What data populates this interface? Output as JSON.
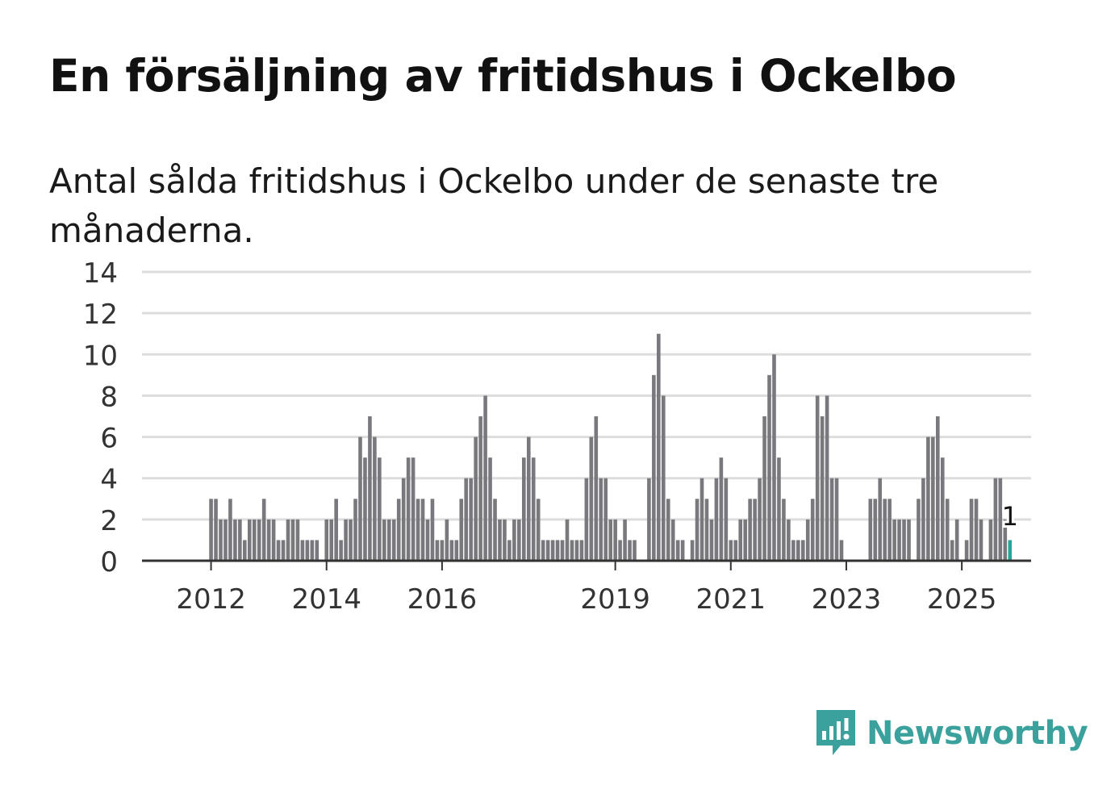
{
  "title": "En försäljning av fritidshus i Ockelbo",
  "subtitle": "Antal sålda fritidshus i Ockelbo under de senaste tre månaderna.",
  "brand": {
    "name": "Newsworthy",
    "icon": "newsworthy-logo-icon",
    "color": "#3aa19c"
  },
  "chart_data": {
    "type": "bar",
    "title": "",
    "xlabel": "",
    "ylabel": "",
    "ylim": [
      0,
      14
    ],
    "yticks": [
      "0",
      "2",
      "4",
      "6",
      "8",
      "10",
      "12",
      "14"
    ],
    "xticks": [
      {
        "label": "2012",
        "month": "2012-01"
      },
      {
        "label": "2014",
        "month": "2014-01"
      },
      {
        "label": "2016",
        "month": "2016-01"
      },
      {
        "label": "2019",
        "month": "2019-01"
      },
      {
        "label": "2021",
        "month": "2021-01"
      },
      {
        "label": "2023",
        "month": "2023-01"
      },
      {
        "label": "2025",
        "month": "2025-01"
      }
    ],
    "grid": true,
    "bar_color": "#79787d",
    "highlight_color": "#2aa39a",
    "series": [
      {
        "start_month": "2011-01",
        "values": [
          0,
          0,
          0,
          0,
          0,
          0,
          0,
          0,
          0,
          0,
          0,
          0,
          3,
          3,
          2,
          2,
          3,
          2,
          2,
          1,
          2,
          2,
          2,
          3,
          2,
          2,
          1,
          1,
          2,
          2,
          2,
          1,
          1,
          1,
          1,
          0,
          2,
          2,
          3,
          1,
          2,
          2,
          3,
          6,
          5,
          7,
          6,
          5,
          2,
          2,
          2,
          3,
          4,
          5,
          5,
          3,
          3,
          2,
          3,
          1,
          1,
          2,
          1,
          1,
          3,
          4,
          4,
          6,
          7,
          8,
          5,
          3,
          2,
          2,
          1,
          2,
          2,
          5,
          6,
          5,
          3,
          1,
          1,
          1,
          1,
          1,
          2,
          1,
          1,
          1,
          4,
          6,
          7,
          4,
          4,
          2,
          2,
          1,
          2,
          1,
          1,
          0,
          0,
          4,
          9,
          11,
          8,
          3,
          2,
          1,
          1,
          0,
          1,
          3,
          4,
          3,
          2,
          4,
          5,
          4,
          1,
          1,
          2,
          2,
          3,
          3,
          4,
          7,
          9,
          10,
          5,
          3,
          2,
          1,
          1,
          1,
          2,
          3,
          8,
          7,
          8,
          4,
          4,
          1,
          0,
          0,
          0,
          0,
          0,
          3,
          3,
          4,
          3,
          3,
          2,
          2,
          2,
          2,
          0,
          3,
          4,
          6,
          6,
          7,
          5,
          3,
          1,
          2,
          0,
          1,
          3,
          3,
          2,
          0,
          2,
          4,
          4,
          2,
          1
        ]
      }
    ],
    "highlight": {
      "month": "2025-11",
      "value": 1,
      "label": "1"
    }
  }
}
